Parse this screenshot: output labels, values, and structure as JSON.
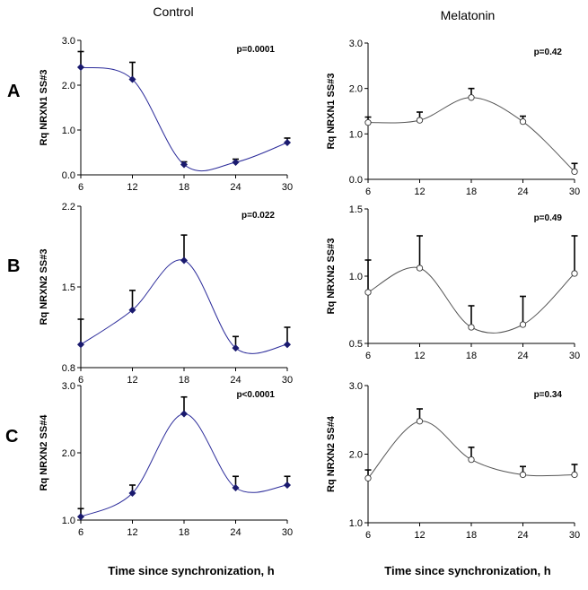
{
  "columns": [
    "Control",
    "Melatonin"
  ],
  "row_labels": [
    "A",
    "B",
    "C"
  ],
  "x_title": "Time since synchronization,  h",
  "colors": {
    "control": "#2b2b9a",
    "melatonin": "#555555",
    "axis": "#000000",
    "control_marker": "#1a1a6e"
  },
  "chart_data": [
    {
      "type": "line",
      "group": "Control",
      "row": "A",
      "ylabel": "Rq NRXN1 SS#3",
      "pvalue": "p=0.0001",
      "x": [
        6,
        12,
        18,
        24,
        30
      ],
      "values": [
        2.4,
        2.13,
        0.23,
        0.28,
        0.72
      ],
      "errors": [
        0.35,
        0.38,
        0.06,
        0.07,
        0.1
      ],
      "xlim": [
        6,
        30
      ],
      "ylim": [
        0,
        3
      ],
      "xticks": [
        "6",
        "12",
        "18",
        "24",
        "30"
      ],
      "yticks": [
        "0.0",
        "1.0",
        "2.0",
        "3.0"
      ],
      "ytick_values": [
        0,
        1,
        2,
        3
      ]
    },
    {
      "type": "line",
      "group": "Melatonin",
      "row": "A",
      "ylabel": "Rq NRXN1 SS#3",
      "pvalue": "p=0.42",
      "x": [
        6,
        12,
        18,
        24,
        30
      ],
      "values": [
        1.25,
        1.3,
        1.8,
        1.27,
        0.17
      ],
      "errors": [
        0.12,
        0.18,
        0.2,
        0.12,
        0.18
      ],
      "xlim": [
        6,
        30
      ],
      "ylim": [
        0,
        3
      ],
      "xticks": [
        "6",
        "12",
        "18",
        "24",
        "30"
      ],
      "yticks": [
        "0.0",
        "1.0",
        "2.0",
        "3.0"
      ],
      "ytick_values": [
        0,
        1,
        2,
        3
      ]
    },
    {
      "type": "line",
      "group": "Control",
      "row": "B",
      "ylabel": "Rq NRXN2 SS#3",
      "pvalue": "p=0.022",
      "x": [
        6,
        12,
        18,
        24,
        30
      ],
      "values": [
        1.0,
        1.3,
        1.73,
        0.97,
        1.0
      ],
      "errors": [
        0.22,
        0.17,
        0.22,
        0.1,
        0.15
      ],
      "xlim": [
        6,
        30
      ],
      "ylim": [
        0.8,
        2.2
      ],
      "xticks": [
        "6",
        "12",
        "18",
        "24",
        "30"
      ],
      "yticks": [
        "0.8",
        "1.5",
        "2.2"
      ],
      "ytick_values": [
        0.8,
        1.5,
        2.2
      ]
    },
    {
      "type": "line",
      "group": "Melatonin",
      "row": "B",
      "ylabel": "Rq NRXN2 SS#3",
      "pvalue": "p=0.49",
      "x": [
        6,
        12,
        18,
        24,
        30
      ],
      "values": [
        0.88,
        1.06,
        0.62,
        0.64,
        1.02
      ],
      "errors": [
        0.24,
        0.24,
        0.16,
        0.21,
        0.28
      ],
      "xlim": [
        6,
        30
      ],
      "ylim": [
        0.5,
        1.5
      ],
      "xticks": [
        "6",
        "12",
        "18",
        "24",
        "30"
      ],
      "yticks": [
        "0.5",
        "1.0",
        "1.5"
      ],
      "ytick_values": [
        0.5,
        1.0,
        1.5
      ]
    },
    {
      "type": "line",
      "group": "Control",
      "row": "C",
      "ylabel": "Rq NRXN2 SS#4",
      "pvalue": "p<0.0001",
      "x": [
        6,
        12,
        18,
        24,
        30
      ],
      "values": [
        1.05,
        1.4,
        2.58,
        1.48,
        1.52
      ],
      "errors": [
        0.12,
        0.12,
        0.25,
        0.17,
        0.13
      ],
      "xlim": [
        6,
        30
      ],
      "ylim": [
        1,
        3
      ],
      "xticks": [
        "6",
        "12",
        "18",
        "24",
        "30"
      ],
      "yticks": [
        "1.0",
        "2.0",
        "3.0"
      ],
      "ytick_values": [
        1,
        2,
        3
      ]
    },
    {
      "type": "line",
      "group": "Melatonin",
      "row": "C",
      "ylabel": "Rq NRXN2 SS#4",
      "pvalue": "p=0.34",
      "x": [
        6,
        12,
        18,
        24,
        30
      ],
      "values": [
        1.65,
        2.48,
        1.92,
        1.7,
        1.7
      ],
      "errors": [
        0.12,
        0.18,
        0.18,
        0.12,
        0.15
      ],
      "xlim": [
        6,
        30
      ],
      "ylim": [
        1,
        3
      ],
      "xticks": [
        "6",
        "12",
        "18",
        "24",
        "30"
      ],
      "yticks": [
        "1.0",
        "2.0",
        "3.0"
      ],
      "ytick_values": [
        1,
        2,
        3
      ]
    }
  ]
}
